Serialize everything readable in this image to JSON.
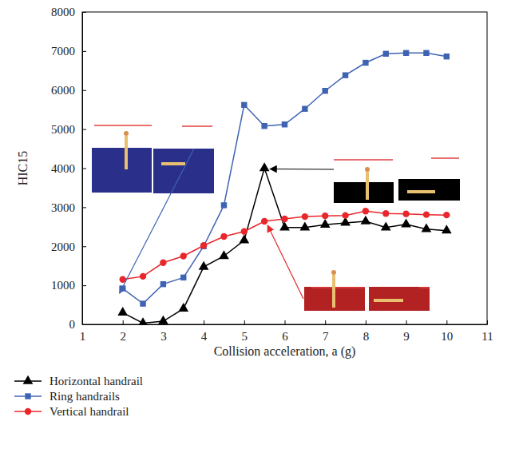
{
  "chart_data": {
    "type": "line",
    "x_label": "Collision acceleration, a (g)",
    "y_label": "HIC15",
    "x": [
      2,
      2.5,
      3,
      3.5,
      4,
      4.5,
      5,
      5.5,
      6,
      6.5,
      7,
      7.5,
      8,
      8.5,
      9,
      9.5,
      10
    ],
    "series": [
      {
        "name": "Horizontal handrail",
        "color": "#000000",
        "marker": "triangle",
        "line_style": "solid",
        "values": [
          300,
          30,
          80,
          400,
          1470,
          1750,
          2150,
          4000,
          2480,
          2480,
          2550,
          2600,
          2640,
          2480,
          2560,
          2440,
          2400
        ]
      },
      {
        "name": "Ring handrails",
        "color": "#3f63b3",
        "marker": "square",
        "line_style": "solid",
        "values": [
          920,
          530,
          1030,
          1200,
          2000,
          3050,
          5620,
          5080,
          5120,
          5520,
          5980,
          6380,
          6700,
          6930,
          6950,
          6950,
          6860
        ]
      },
      {
        "name": "Vertical handrail",
        "color": "#e8262b",
        "marker": "circle",
        "line_style": "solid",
        "values": [
          1150,
          1230,
          1580,
          1750,
          2020,
          2250,
          2380,
          2640,
          2700,
          2760,
          2780,
          2790,
          2900,
          2840,
          2830,
          2810,
          2800
        ]
      }
    ],
    "xlim": [
      1,
      11
    ],
    "xticks": [
      1,
      2,
      3,
      4,
      5,
      6,
      7,
      8,
      9,
      10,
      11
    ],
    "ylim": [
      0,
      8000
    ],
    "yticks": [
      0,
      1000,
      2000,
      3000,
      4000,
      5000,
      6000,
      7000,
      8000
    ],
    "grid": false,
    "legend": "bottom"
  }
}
